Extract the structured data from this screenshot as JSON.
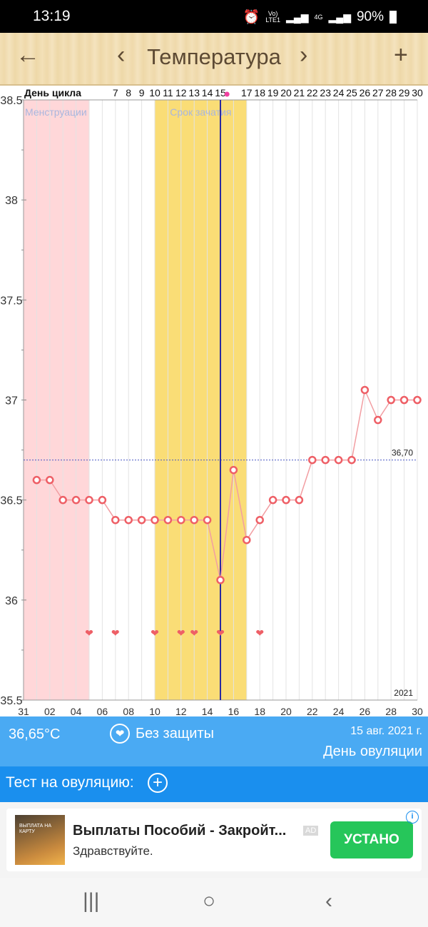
{
  "status_bar": {
    "time": "13:19",
    "net_top": "Vo)",
    "net_bottom": "LTE1",
    "signal_tag": "4G",
    "battery": "90%"
  },
  "header": {
    "title": "Температура",
    "back_icon": "←",
    "prev_icon": "‹",
    "next_icon": "›",
    "add_icon": "+"
  },
  "chart_data": {
    "type": "line",
    "cycle_day_label": "День цикла",
    "cycle_days": [
      "",
      "7",
      "8",
      "9",
      "10",
      "11",
      "12",
      "13",
      "14",
      "15",
      "",
      "17",
      "18",
      "19",
      "20",
      "21",
      "22",
      "23",
      "24",
      "25",
      "26",
      "27",
      "28",
      "29",
      "30"
    ],
    "x_tick_labels": [
      "31",
      "02",
      "04",
      "06",
      "08",
      "10",
      "12",
      "14",
      "16",
      "18",
      "20",
      "22",
      "24",
      "26",
      "28",
      "30"
    ],
    "y_tick_labels": [
      "38.5",
      "38",
      "37.5",
      "37",
      "36.5",
      "36",
      "35.5"
    ],
    "ylim": [
      35.5,
      38.5
    ],
    "series": [
      {
        "values": [
          36.6,
          36.6,
          36.5,
          36.5,
          36.5,
          36.5,
          36.4,
          36.4,
          36.4,
          36.4,
          36.4,
          36.4,
          36.4,
          36.4,
          36.1,
          36.65,
          36.3,
          36.4,
          36.5,
          36.5,
          36.5,
          36.7,
          36.7,
          36.7,
          36.7,
          37.05,
          36.9,
          37.0,
          37.0,
          37.0
        ]
      }
    ],
    "intercourse_days": [
      5,
      7,
      10,
      12,
      13,
      15,
      18
    ],
    "menstruation_label": "Менструации",
    "menstruation_range": [
      0,
      5
    ],
    "fertile_label": "Срок зачатия",
    "fertile_range": [
      10,
      17
    ],
    "ovulation_day": 15,
    "cover_line": 36.7,
    "cover_line_label": "36,70",
    "year_label": "2021",
    "colors": {
      "line": "#f29ea2",
      "marker": "#ee5f66",
      "menstruation": "#ffd7d9",
      "fertile": "#fadd76",
      "ovulation": "#2a2aa0",
      "cover": "#4a57c4"
    }
  },
  "info": {
    "temperature": "36,65°C",
    "protection": "Без защиты",
    "date": "15 авг. 2021 г.",
    "day_type": "День овуляции",
    "heart_icon": "❤"
  },
  "ovulation_test": {
    "label": "Тест на овуляцию:",
    "add_icon": "+"
  },
  "ad": {
    "title": "Выплаты Пособий - Закройт...",
    "subtitle": "Здравствуйте.",
    "badge": "AD",
    "button": "УСТАНО",
    "thumb_text": "ВЫПЛАТА НА КАРТУ",
    "info_icon": "i"
  },
  "nav": {
    "recents_icon": "|||",
    "home_icon": "○",
    "back_icon": "‹"
  }
}
